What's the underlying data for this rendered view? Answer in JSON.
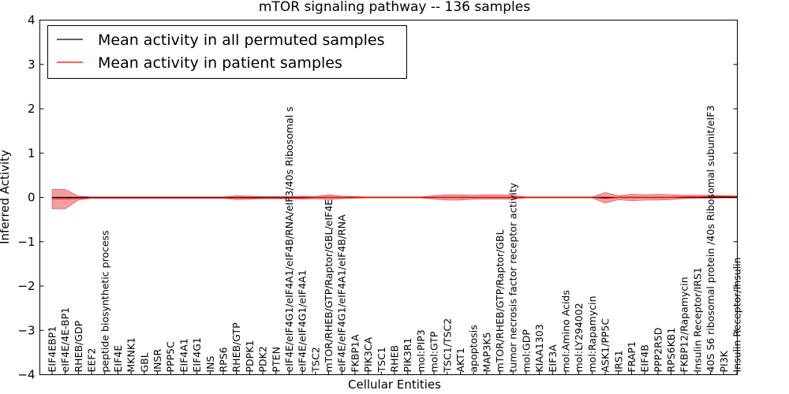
{
  "chart_data": {
    "type": "line",
    "title": "mTOR signaling pathway -- 136 samples",
    "xlabel": "Cellular Entities",
    "ylabel": "Inferred Activity",
    "ylim": [
      -4,
      4
    ],
    "yticks": [
      "−4",
      "−3",
      "−2",
      "−1",
      "0",
      "1",
      "2",
      "3",
      "4"
    ],
    "grid": false,
    "legend_position": "top-left",
    "colors": {
      "permuted": "#000000",
      "patient": "#ff0000",
      "band": "#ee7f7f"
    },
    "categories": [
      "EIF4EBP1",
      "eIF4E/4E-BP1",
      "RHEB/GDP",
      "EEF2",
      "peptide biosynthetic process",
      "EIF4E",
      "MKNK1",
      "GBL",
      "INSR",
      "PPP5C",
      "EIF4A1",
      "EIF4G1",
      "INS",
      "RPS6",
      "RHEB/GTP",
      "PDPK1",
      "PDK2",
      "PTEN",
      "eIF4E/eIF4G1/eIF4A1/eIF4B/RNA/eIF3/40s Ribosomal s",
      "eIF4E/eIF4G1/eIF4A1",
      "TSC2",
      "mTOR/RHEB/GTP/Raptor/GBL/eIF4E",
      "eIF4E/eIF4G1/eIF4A1/eIF4B/RNA",
      "FKBP1A",
      "PIK3CA",
      "TSC1",
      "RHEB",
      "PIK3R1",
      "mol:PIP3",
      "mol:GTP",
      "TSC1/TSC2",
      "AKT1",
      "apoptosis",
      "MAP3K5",
      "mTOR/RHEB/GTP/Raptor/GBL",
      "tumor necrosis factor receptor activity",
      "mol:GDP",
      "KIAA1303",
      "EIF3A",
      "mol:Amino Acids",
      "mol:LY294002",
      "mol:Rapamycin",
      "ASK1/PP5C",
      "IRS1",
      "FRAP1",
      "EIF4B",
      "PPP2R5D",
      "RPS6KB1",
      "FKBP12/Rapamycin",
      "Insulin Receptor/IRS1",
      "40S S6 ribosomal protein /40s Ribosomal subunit/eIF3",
      "PI3K",
      "Insulin Receptor/Insulin"
    ],
    "series": [
      {
        "name": "Mean activity in all permuted samples",
        "values": [
          0,
          0,
          0,
          0,
          0,
          0,
          0,
          0,
          0,
          0,
          0,
          0,
          0,
          0,
          0,
          0,
          0,
          0,
          0,
          0,
          0,
          0,
          0,
          0,
          0,
          0,
          0,
          0,
          0,
          0,
          0,
          0,
          0,
          0,
          0,
          0,
          0,
          0,
          0,
          0,
          0,
          0,
          0,
          0,
          0,
          0,
          0,
          0,
          0,
          0,
          0,
          0,
          0
        ]
      },
      {
        "name": "Mean activity in patient samples",
        "values": [
          -0.03,
          -0.03,
          -0.02,
          -0.01,
          -0.01,
          -0.01,
          -0.01,
          -0.01,
          -0.01,
          -0.01,
          -0.01,
          -0.01,
          -0.01,
          -0.01,
          -0.01,
          -0.01,
          -0.01,
          -0.01,
          -0.01,
          -0.01,
          0.0,
          0.0,
          0.0,
          0.0,
          0.0,
          0.0,
          0.0,
          0.0,
          0.0,
          0.0,
          0.0,
          0.0,
          0.0,
          0.0,
          0.0,
          0.0,
          0.0,
          0.0,
          0.0,
          0.0,
          0.0,
          0.0,
          -0.02,
          0.0,
          0.0,
          0.0,
          0.0,
          0.0,
          0.01,
          0.01,
          0.02,
          0.02,
          0.02
        ]
      }
    ],
    "band_upper": [
      0.18,
      0.18,
      0.03,
      0.01,
      0.01,
      0.01,
      0.01,
      0.01,
      0.01,
      0.01,
      0.01,
      0.01,
      0.01,
      0.01,
      0.04,
      0.03,
      0.02,
      0.02,
      0.02,
      0.03,
      0.02,
      0.06,
      0.03,
      0.02,
      0.01,
      0.01,
      0.01,
      0.01,
      0.01,
      0.04,
      0.06,
      0.06,
      0.05,
      0.06,
      0.06,
      0.05,
      0.01,
      0.01,
      0.01,
      0.01,
      0.01,
      0.01,
      0.11,
      0.04,
      0.07,
      0.06,
      0.07,
      0.06,
      0.05,
      0.05,
      0.05,
      0.04,
      0.03
    ],
    "band_lower": [
      -0.26,
      -0.26,
      -0.06,
      -0.02,
      -0.02,
      -0.02,
      -0.02,
      -0.02,
      -0.02,
      -0.02,
      -0.02,
      -0.02,
      -0.02,
      -0.02,
      -0.05,
      -0.04,
      -0.03,
      -0.03,
      -0.03,
      -0.04,
      -0.03,
      -0.05,
      -0.03,
      -0.02,
      -0.01,
      -0.01,
      -0.01,
      -0.01,
      -0.01,
      -0.04,
      -0.06,
      -0.06,
      -0.04,
      -0.04,
      -0.04,
      -0.04,
      -0.01,
      -0.01,
      -0.01,
      -0.01,
      -0.01,
      -0.01,
      -0.13,
      -0.05,
      -0.08,
      -0.06,
      -0.06,
      -0.05,
      -0.03,
      -0.02,
      -0.02,
      -0.01,
      -0.01
    ]
  }
}
